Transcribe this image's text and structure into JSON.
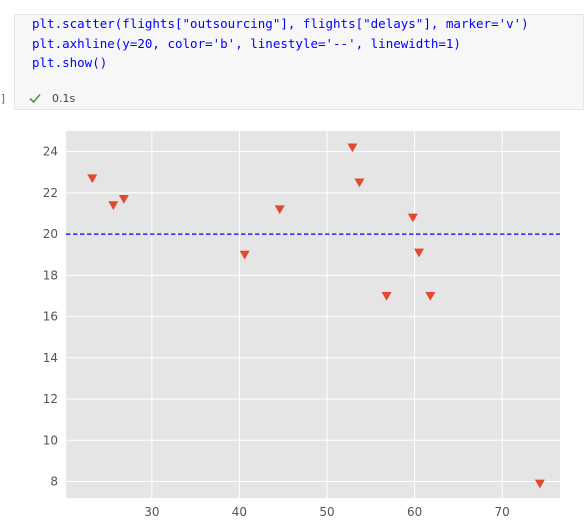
{
  "cell": {
    "code_lines": [
      "plt.scatter(flights[\"outsourcing\"], flights[\"delays\"], marker='v')",
      "plt.axhline(y=20, color='b', linestyle='--', linewidth=1)",
      "plt.show()"
    ],
    "exec_bracket": "]",
    "exec_time": "0.1s",
    "status_icon": "check-icon",
    "status_color": "#3c9e3c"
  },
  "chart_data": {
    "type": "scatter",
    "marker": "v",
    "marker_color": "#e2492f",
    "background": "#e5e5e5",
    "grid": true,
    "grid_color": "#ffffff",
    "xlim": [
      20.2,
      76.6
    ],
    "ylim": [
      7.2,
      25.0
    ],
    "x_ticks": [
      30,
      40,
      50,
      60,
      70
    ],
    "y_ticks": [
      8,
      10,
      12,
      14,
      16,
      18,
      20,
      22,
      24
    ],
    "series": [
      {
        "x": [
          23.2,
          25.6,
          26.8,
          40.6,
          44.6,
          52.9,
          53.7,
          56.8,
          59.8,
          60.5,
          61.8,
          74.3
        ],
        "y": [
          22.7,
          21.4,
          21.7,
          19.0,
          21.2,
          24.2,
          22.5,
          17.0,
          20.8,
          19.1,
          17.0,
          7.9
        ]
      }
    ],
    "hline": {
      "y": 20,
      "color": "#0000ff",
      "linestyle": "--"
    }
  }
}
